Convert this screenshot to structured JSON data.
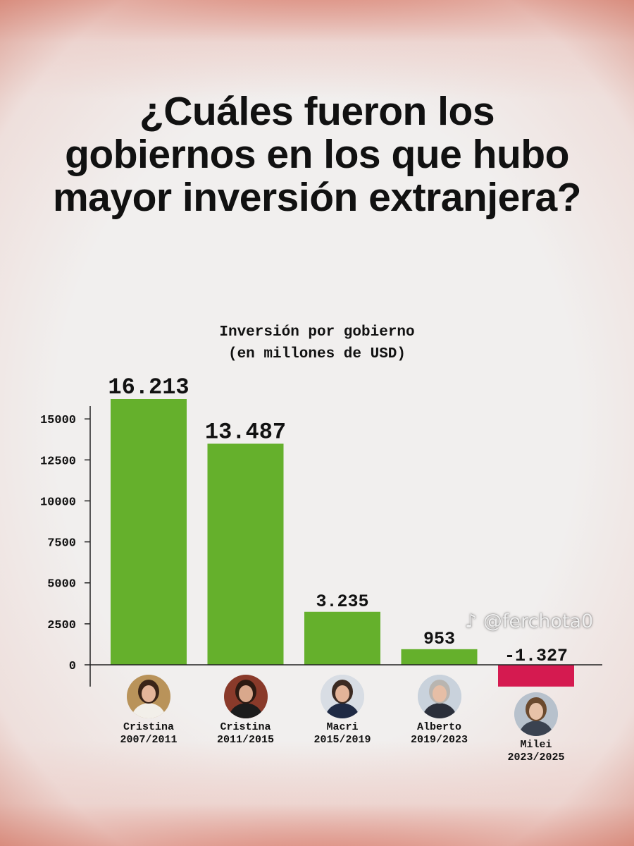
{
  "headline": "¿Cuáles fueron los gobiernos en los que hubo mayor inversión extranjera?",
  "watermark": "@ferchota0",
  "chart_data": {
    "type": "bar",
    "title": "Inversión por gobierno",
    "subtitle": "(en millones de USD)",
    "xlabel": "",
    "ylabel": "",
    "ylim": [
      -1327,
      16213
    ],
    "yticks": [
      0,
      2500,
      5000,
      7500,
      10000,
      12500,
      15000
    ],
    "grid": false,
    "legend": "none",
    "colors": {
      "positive": "#65b02c",
      "negative": "#d51a50"
    },
    "categories": [
      {
        "name": "Cristina",
        "period": "2007/2011"
      },
      {
        "name": "Cristina",
        "period": "2011/2015"
      },
      {
        "name": "Macri",
        "period": "2015/2019"
      },
      {
        "name": "Alberto",
        "period": "2019/2023"
      },
      {
        "name": "Milei",
        "period": "2023/2025"
      }
    ],
    "values": [
      16213,
      13487,
      3235,
      953,
      -1327
    ],
    "value_labels": [
      "16.213",
      "13.487",
      "3.235",
      "953",
      "-1.327"
    ]
  }
}
